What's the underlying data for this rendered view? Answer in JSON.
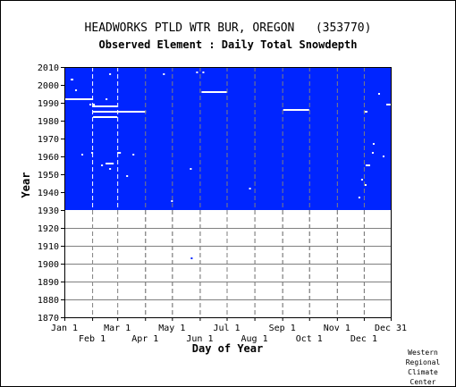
{
  "title": "HEADWORKS PTLD WTR BUR, OREGON   (353770)",
  "subtitle": "Observed Element : Daily Total Snowdepth",
  "credit": [
    "Western",
    "Regional",
    "Climate",
    "Center"
  ],
  "colors": {
    "data": "#0025ff",
    "grid": "#7f7f7f",
    "missing": "#ffffff",
    "axis": "#000000"
  },
  "chart_data": {
    "type": "heatmap",
    "title": "Observed Element : Daily Total Snowdepth",
    "xlabel": "Day of Year",
    "ylabel": "Year",
    "xlim": [
      1,
      365
    ],
    "ylim": [
      1870,
      2010
    ],
    "x_ticks_top_row": [
      {
        "label": "Jan 1",
        "day": 1
      },
      {
        "label": "Mar 1",
        "day": 60
      },
      {
        "label": "May 1",
        "day": 121
      },
      {
        "label": "Jul 1",
        "day": 182
      },
      {
        "label": "Sep 1",
        "day": 244
      },
      {
        "label": "Nov 1",
        "day": 305
      },
      {
        "label": "Dec 31",
        "day": 365
      }
    ],
    "x_ticks_bottom_row": [
      {
        "label": "Feb 1",
        "day": 32
      },
      {
        "label": "Apr 1",
        "day": 91
      },
      {
        "label": "Jun 1",
        "day": 152
      },
      {
        "label": "Aug 1",
        "day": 213
      },
      {
        "label": "Oct 1",
        "day": 274
      },
      {
        "label": "Dec 1",
        "day": 335
      }
    ],
    "y_ticks": [
      1870,
      1880,
      1890,
      1900,
      1910,
      1920,
      1930,
      1940,
      1950,
      1960,
      1970,
      1980,
      1990,
      2000,
      2010
    ],
    "data_coverage": {
      "start_year": 1930,
      "end_year": 2010,
      "start_day": 1,
      "end_day": 365
    },
    "missing_segments": [
      {
        "year": 1992,
        "start_day": 1,
        "end_day": 33
      },
      {
        "year": 1988,
        "start_day": 33,
        "end_day": 60
      },
      {
        "year": 1985,
        "start_day": 33,
        "end_day": 92
      },
      {
        "year": 1982,
        "start_day": 33,
        "end_day": 60
      },
      {
        "year": 1996,
        "start_day": 154,
        "end_day": 183
      },
      {
        "year": 1986,
        "start_day": 245,
        "end_day": 274
      },
      {
        "year": 1989,
        "start_day": 360,
        "end_day": 365
      },
      {
        "year": 1985,
        "start_day": 335,
        "end_day": 339
      },
      {
        "year": 1955,
        "start_day": 337,
        "end_day": 342
      },
      {
        "year": 1956,
        "start_day": 47,
        "end_day": 56
      },
      {
        "year": 1962,
        "start_day": 60,
        "end_day": 64
      },
      {
        "year": 2003,
        "start_day": 8,
        "end_day": 11
      },
      {
        "year": 1962,
        "start_day": 31,
        "end_day": 33
      },
      {
        "year": 1989,
        "start_day": 33,
        "end_day": 35
      }
    ],
    "isolated_points": [
      {
        "year": 2007,
        "day": 149
      },
      {
        "year": 2007,
        "day": 156
      },
      {
        "year": 2006,
        "day": 112
      },
      {
        "year": 1997,
        "day": 14
      },
      {
        "year": 1992,
        "day": 48
      },
      {
        "year": 1989,
        "day": 30
      },
      {
        "year": 1961,
        "day": 21
      },
      {
        "year": 1961,
        "day": 78
      },
      {
        "year": 1955,
        "day": 43
      },
      {
        "year": 1953,
        "day": 52
      },
      {
        "year": 1953,
        "day": 142
      },
      {
        "year": 1949,
        "day": 71
      },
      {
        "year": 1942,
        "day": 208
      },
      {
        "year": 1937,
        "day": 330
      },
      {
        "year": 1935,
        "day": 121
      },
      {
        "year": 1903,
        "day": 143
      },
      {
        "year": 1995,
        "day": 352
      },
      {
        "year": 1967,
        "day": 346
      },
      {
        "year": 1962,
        "day": 345
      },
      {
        "year": 1944,
        "day": 337
      },
      {
        "year": 1947,
        "day": 333
      },
      {
        "year": 1960,
        "day": 357
      },
      {
        "year": 2006,
        "day": 52
      }
    ]
  }
}
